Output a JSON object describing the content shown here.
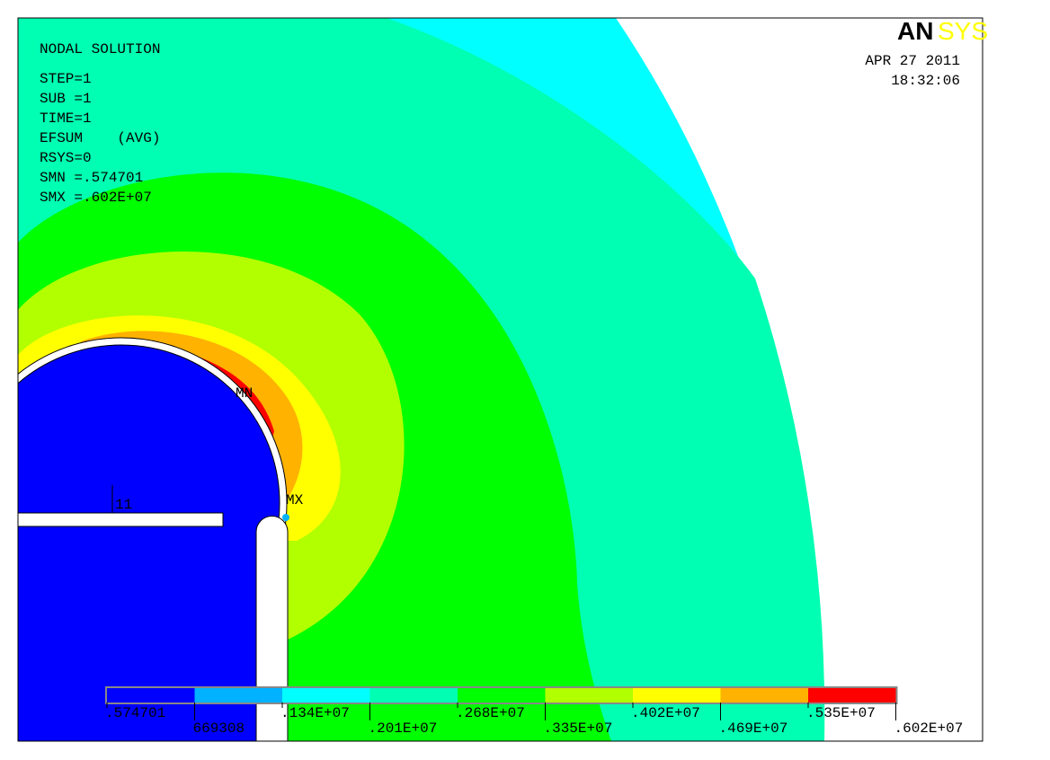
{
  "logo": {
    "an": "AN",
    "sys": "SYS"
  },
  "info": [
    "NODAL SOLUTION",
    "STEP=1",
    "SUB =1",
    "TIME=1",
    "EFSUM    (AVG)",
    "RSYS=0",
    "SMN =.574701",
    "SMX =.602E+07"
  ],
  "date": "APR 27 2011",
  "time": "18:32:06",
  "labels": {
    "mn": "MN",
    "mx": "MX",
    "node": "11"
  },
  "legend": {
    "colors": [
      "#0000ff",
      "#00b2ff",
      "#00ffff",
      "#00ffb2",
      "#00ff00",
      "#b2ff00",
      "#ffff00",
      "#ffb200",
      "#ff0000"
    ],
    "labels": [
      ".574701",
      "669308",
      ".134E+07",
      ".201E+07",
      ".268E+07",
      ".335E+07",
      ".402E+07",
      ".469E+07",
      ".535E+07",
      ".602E+07"
    ]
  }
}
